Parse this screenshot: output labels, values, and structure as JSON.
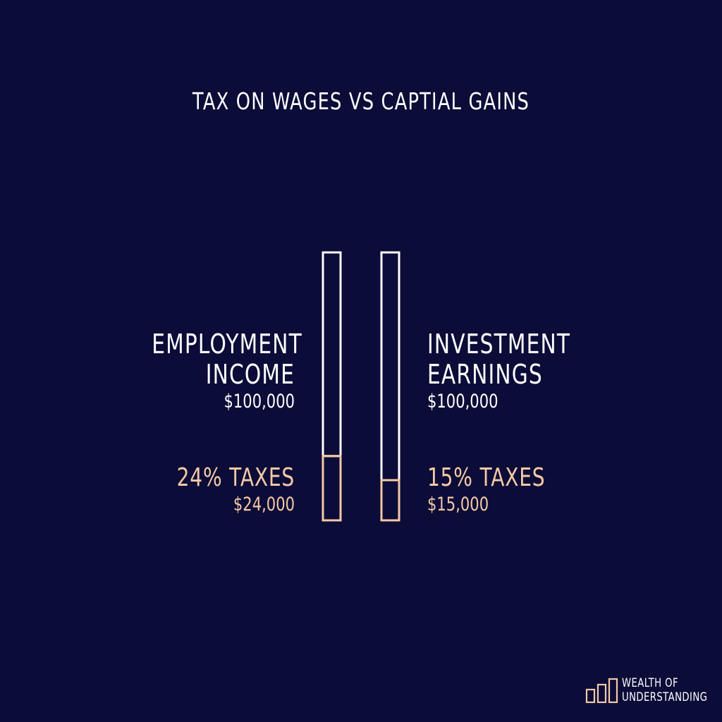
{
  "title": "TAX ON WAGES VS CAPTIAL GAINS",
  "colors": {
    "background": "#0b0c38",
    "text": "#ffffff",
    "accent": "#f5c9a6"
  },
  "chart_data": {
    "type": "bar",
    "orientation": "vertical",
    "style": "outlined stacked bars",
    "categories": [
      "EMPLOYMENT INCOME",
      "INVESTMENT EARNINGS"
    ],
    "totals": [
      100000,
      100000
    ],
    "tax_percent": [
      24,
      15
    ],
    "tax_values": [
      24000,
      15000
    ],
    "ylim": [
      0,
      100000
    ],
    "grid": false,
    "legend": "none",
    "labels": [
      {
        "name_line1": "EMPLOYMENT",
        "name_line2": "INCOME",
        "amount": "$100,000",
        "tax_label": "24% TAXES",
        "tax_amount": "$24,000"
      },
      {
        "name_line1": "INVESTMENT",
        "name_line2": "EARNINGS",
        "amount": "$100,000",
        "tax_label": "15% TAXES",
        "tax_amount": "$15,000"
      }
    ]
  },
  "logo": {
    "line1": "WEALTH OF",
    "line2": "UNDERSTANDING",
    "icon": "bar-chart-logo-icon"
  }
}
